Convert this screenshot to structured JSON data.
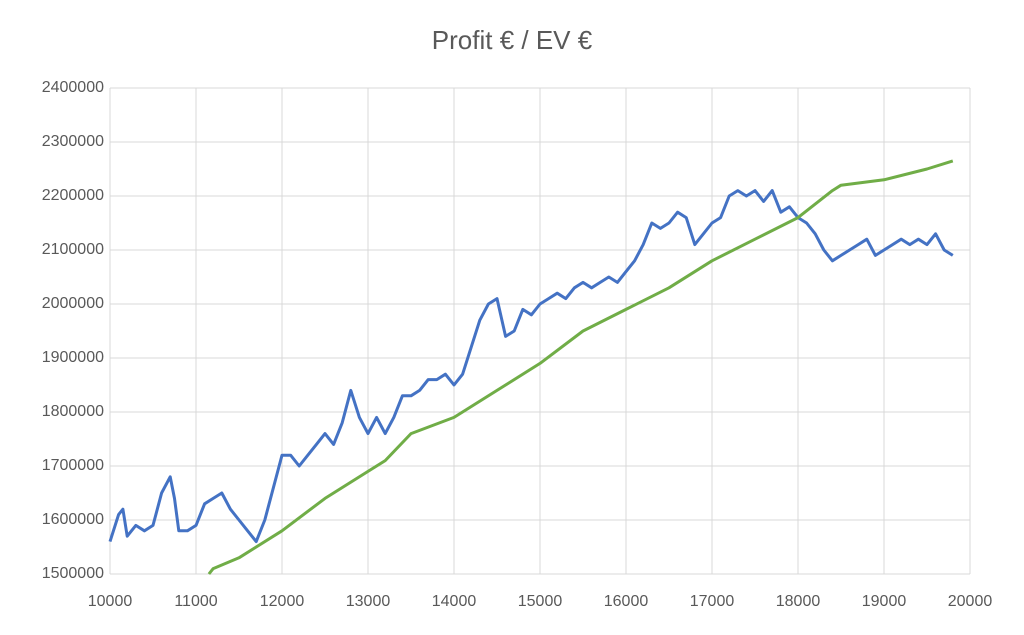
{
  "chart_data": {
    "type": "line",
    "title": "Profit € / EV €",
    "series": [
      {
        "color": "#4472c4",
        "x": [
          10000,
          10100,
          10150,
          10200,
          10300,
          10400,
          10500,
          10600,
          10700,
          10750,
          10800,
          10900,
          11000,
          11100,
          11200,
          11300,
          11400,
          11500,
          11600,
          11700,
          11800,
          11900,
          12000,
          12100,
          12200,
          12300,
          12400,
          12500,
          12600,
          12700,
          12800,
          12900,
          13000,
          13100,
          13200,
          13300,
          13400,
          13500,
          13600,
          13700,
          13800,
          13900,
          14000,
          14100,
          14200,
          14300,
          14400,
          14500,
          14600,
          14700,
          14800,
          14900,
          15000,
          15100,
          15200,
          15300,
          15400,
          15500,
          15600,
          15700,
          15800,
          15900,
          16000,
          16100,
          16200,
          16300,
          16400,
          16500,
          16600,
          16700,
          16800,
          16900,
          17000,
          17100,
          17200,
          17300,
          17400,
          17500,
          17600,
          17700,
          17800,
          17900,
          18000,
          18100,
          18200,
          18300,
          18400,
          18500,
          18600,
          18700,
          18800,
          18900,
          19000,
          19100,
          19200,
          19300,
          19400,
          19500,
          19600,
          19700,
          19800
        ],
        "values": [
          1560000,
          1610000,
          1620000,
          1570000,
          1590000,
          1580000,
          1590000,
          1650000,
          1680000,
          1640000,
          1580000,
          1580000,
          1590000,
          1630000,
          1640000,
          1650000,
          1620000,
          1600000,
          1580000,
          1560000,
          1600000,
          1660000,
          1720000,
          1720000,
          1700000,
          1720000,
          1740000,
          1760000,
          1740000,
          1780000,
          1840000,
          1790000,
          1760000,
          1790000,
          1760000,
          1790000,
          1830000,
          1830000,
          1840000,
          1860000,
          1860000,
          1870000,
          1850000,
          1870000,
          1920000,
          1970000,
          2000000,
          2010000,
          1940000,
          1950000,
          1990000,
          1980000,
          2000000,
          2010000,
          2020000,
          2010000,
          2030000,
          2040000,
          2030000,
          2040000,
          2050000,
          2040000,
          2060000,
          2080000,
          2110000,
          2150000,
          2140000,
          2150000,
          2170000,
          2160000,
          2110000,
          2130000,
          2150000,
          2160000,
          2200000,
          2210000,
          2200000,
          2210000,
          2190000,
          2210000,
          2170000,
          2180000,
          2160000,
          2150000,
          2130000,
          2100000,
          2080000,
          2090000,
          2100000,
          2110000,
          2120000,
          2090000,
          2100000,
          2110000,
          2120000,
          2110000,
          2120000,
          2110000,
          2130000,
          2100000,
          2090000
        ]
      },
      {
        "color": "#70ad47",
        "x": [
          11150,
          11200,
          11500,
          12000,
          12500,
          13000,
          13200,
          13500,
          14000,
          14500,
          15000,
          15500,
          16000,
          16500,
          17000,
          17500,
          18000,
          18400,
          18500,
          19000,
          19500,
          19800
        ],
        "values": [
          1500000,
          1510000,
          1530000,
          1580000,
          1640000,
          1690000,
          1710000,
          1760000,
          1790000,
          1840000,
          1890000,
          1950000,
          1990000,
          2030000,
          2080000,
          2120000,
          2160000,
          2210000,
          2220000,
          2230000,
          2250000,
          2265000
        ]
      }
    ],
    "xlim": [
      10000,
      20000
    ],
    "xticks": [
      10000,
      11000,
      12000,
      13000,
      14000,
      15000,
      16000,
      17000,
      18000,
      19000,
      20000
    ],
    "ylim": [
      1500000,
      2400000
    ],
    "yticks": [
      1500000,
      1600000,
      1700000,
      1800000,
      1900000,
      2000000,
      2100000,
      2200000,
      2300000,
      2400000
    ],
    "grid": true
  }
}
